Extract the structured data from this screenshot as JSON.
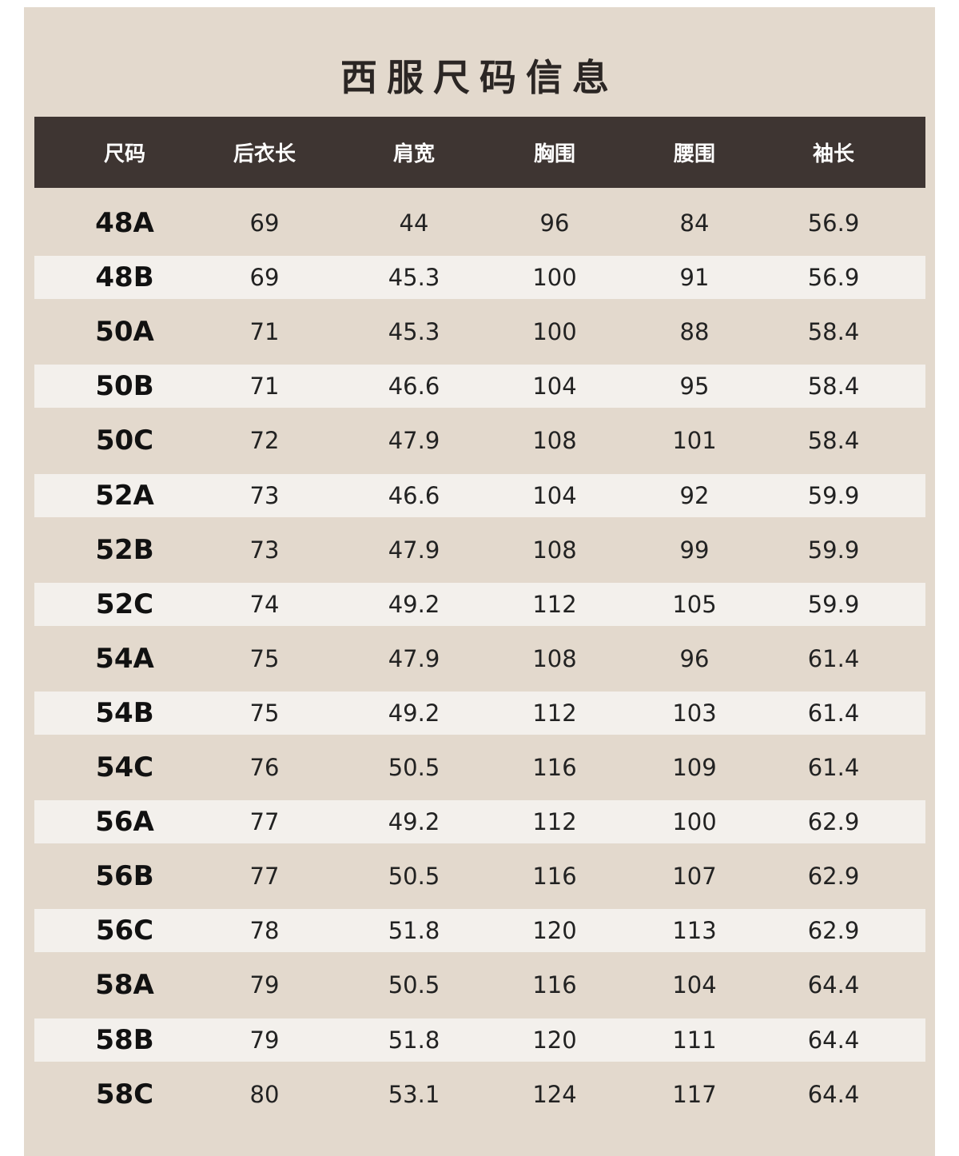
{
  "title": "西服尺码信息",
  "columns": [
    "尺码",
    "后衣长",
    "肩宽",
    "胸围",
    "腰围",
    "袖长"
  ],
  "rows": [
    [
      "48A",
      "69",
      "44",
      "96",
      "84",
      "56.9"
    ],
    [
      "48B",
      "69",
      "45.3",
      "100",
      "91",
      "56.9"
    ],
    [
      "50A",
      "71",
      "45.3",
      "100",
      "88",
      "58.4"
    ],
    [
      "50B",
      "71",
      "46.6",
      "104",
      "95",
      "58.4"
    ],
    [
      "50C",
      "72",
      "47.9",
      "108",
      "101",
      "58.4"
    ],
    [
      "52A",
      "73",
      "46.6",
      "104",
      "92",
      "59.9"
    ],
    [
      "52B",
      "73",
      "47.9",
      "108",
      "99",
      "59.9"
    ],
    [
      "52C",
      "74",
      "49.2",
      "112",
      "105",
      "59.9"
    ],
    [
      "54A",
      "75",
      "47.9",
      "108",
      "96",
      "61.4"
    ],
    [
      "54B",
      "75",
      "49.2",
      "112",
      "103",
      "61.4"
    ],
    [
      "54C",
      "76",
      "50.5",
      "116",
      "109",
      "61.4"
    ],
    [
      "56A",
      "77",
      "49.2",
      "112",
      "100",
      "62.9"
    ],
    [
      "56B",
      "77",
      "50.5",
      "116",
      "107",
      "62.9"
    ],
    [
      "56C",
      "78",
      "51.8",
      "120",
      "113",
      "62.9"
    ],
    [
      "58A",
      "79",
      "50.5",
      "116",
      "104",
      "64.4"
    ],
    [
      "58B",
      "79",
      "51.8",
      "120",
      "111",
      "64.4"
    ],
    [
      "58C",
      "80",
      "53.1",
      "124",
      "117",
      "64.4"
    ]
  ],
  "colors": {
    "background": "#e3d9cd",
    "header": "#3e3532",
    "stripe": "#f3f0ec",
    "text": "#222222"
  }
}
